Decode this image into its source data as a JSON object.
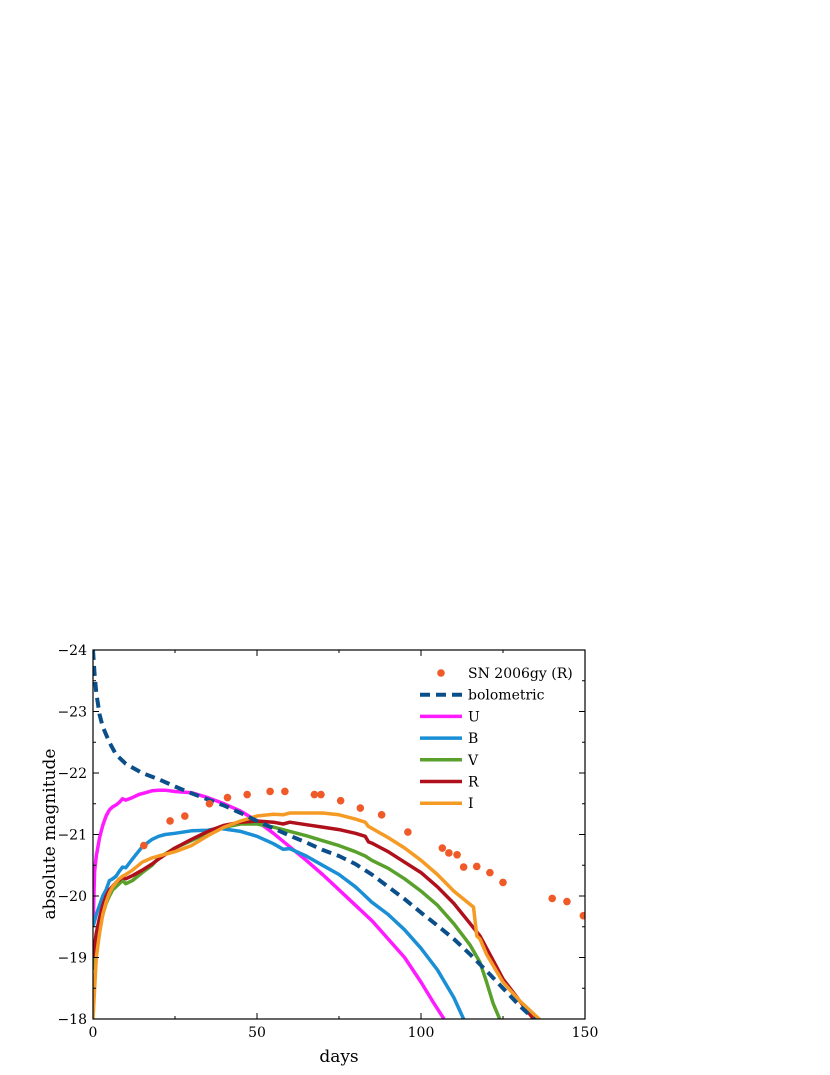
{
  "chart_data": {
    "type": "line",
    "xlabel": "days",
    "ylabel": "absolute magnitude",
    "xlim": [
      0,
      150
    ],
    "ylim": [
      -18,
      -24
    ],
    "y_inverted": true,
    "x_ticks": [
      0,
      50,
      100,
      150
    ],
    "y_ticks": [
      -24,
      -23,
      -22,
      -21,
      -20,
      -19,
      -18
    ],
    "grid": false,
    "legend_position": "top-right",
    "series": [
      {
        "name": "SN 2006gy (R)",
        "style": "markers",
        "color": "#f05a28",
        "x": [
          15.5,
          23.5,
          28,
          35.5,
          41,
          47,
          54,
          58.5,
          67.5,
          69.5,
          75.5,
          81.5,
          88,
          96,
          106.5,
          108.5,
          111,
          113,
          117,
          121,
          125,
          140,
          144.5,
          149.5
        ],
        "y": [
          -20.82,
          -21.22,
          -21.3,
          -21.5,
          -21.6,
          -21.65,
          -21.7,
          -21.7,
          -21.65,
          -21.65,
          -21.55,
          -21.43,
          -21.32,
          -21.04,
          -20.78,
          -20.7,
          -20.67,
          -20.47,
          -20.48,
          -20.38,
          -20.22,
          -19.96,
          -19.91,
          -19.68
        ]
      },
      {
        "name": "bolometric",
        "style": "dashed",
        "color": "#0b4f8a",
        "x": [
          0,
          0.5,
          1,
          2,
          3,
          5,
          7,
          10,
          15,
          20,
          25,
          30,
          35,
          40,
          45,
          50,
          55,
          60,
          65,
          70,
          75,
          80,
          85,
          90,
          95,
          100,
          105,
          110,
          115,
          120,
          125,
          130,
          135,
          137.5
        ],
        "y": [
          -24,
          -23.6,
          -23.3,
          -22.95,
          -22.75,
          -22.5,
          -22.3,
          -22.15,
          -22.0,
          -21.9,
          -21.78,
          -21.67,
          -21.57,
          -21.47,
          -21.35,
          -21.22,
          -21.1,
          -20.98,
          -20.87,
          -20.75,
          -20.65,
          -20.52,
          -20.35,
          -20.15,
          -19.95,
          -19.73,
          -19.52,
          -19.3,
          -19.05,
          -18.78,
          -18.5,
          -18.22,
          -17.97,
          -17.85
        ]
      },
      {
        "name": "U",
        "style": "solid",
        "color": "#ff1aff",
        "x": [
          0,
          0.5,
          1,
          2,
          3,
          4,
          5,
          6,
          7,
          8,
          9,
          10,
          12,
          14,
          16,
          18,
          20,
          22,
          25,
          30,
          35,
          40,
          45,
          50,
          55,
          60,
          65,
          70,
          75,
          80,
          85,
          90,
          95,
          100,
          104,
          107
        ],
        "y": [
          -19.5,
          -20.4,
          -20.65,
          -20.95,
          -21.15,
          -21.3,
          -21.4,
          -21.45,
          -21.48,
          -21.52,
          -21.58,
          -21.56,
          -21.6,
          -21.65,
          -21.68,
          -21.71,
          -21.72,
          -21.72,
          -21.7,
          -21.68,
          -21.6,
          -21.5,
          -21.38,
          -21.22,
          -21.02,
          -20.8,
          -20.58,
          -20.35,
          -20.1,
          -19.85,
          -19.6,
          -19.3,
          -19.0,
          -18.6,
          -18.25,
          -18.0
        ]
      },
      {
        "name": "B",
        "style": "solid",
        "color": "#1a8fd6",
        "x": [
          0,
          1,
          2,
          3,
          4,
          5,
          6,
          7,
          8,
          9,
          10,
          12,
          15,
          18,
          20,
          22,
          25,
          30,
          35,
          38,
          40,
          45,
          50,
          55,
          58,
          60,
          65,
          70,
          75,
          80,
          82,
          85,
          90,
          95,
          100,
          105,
          110,
          113
        ],
        "y": [
          -19.5,
          -19.7,
          -19.85,
          -20.0,
          -20.1,
          -20.25,
          -20.28,
          -20.32,
          -20.4,
          -20.47,
          -20.46,
          -20.6,
          -20.8,
          -20.92,
          -20.97,
          -21.0,
          -21.02,
          -21.06,
          -21.07,
          -21.1,
          -21.09,
          -21.05,
          -20.97,
          -20.85,
          -20.76,
          -20.77,
          -20.65,
          -20.5,
          -20.35,
          -20.15,
          -20.05,
          -19.9,
          -19.7,
          -19.45,
          -19.15,
          -18.8,
          -18.35,
          -18.0
        ]
      },
      {
        "name": "V",
        "style": "solid",
        "color": "#5aa02c",
        "x": [
          0,
          1,
          2,
          3,
          4,
          5,
          6,
          7,
          8,
          9,
          10,
          12,
          15,
          18,
          20,
          25,
          30,
          35,
          40,
          45,
          50,
          55,
          60,
          65,
          70,
          75,
          80,
          83,
          85,
          90,
          95,
          100,
          105,
          110,
          115,
          118,
          120,
          122,
          124
        ],
        "y": [
          -18.8,
          -19.3,
          -19.5,
          -19.7,
          -19.88,
          -20.0,
          -20.1,
          -20.15,
          -20.2,
          -20.25,
          -20.2,
          -20.25,
          -20.38,
          -20.5,
          -20.62,
          -20.78,
          -20.9,
          -21.02,
          -21.12,
          -21.17,
          -21.17,
          -21.12,
          -21.05,
          -20.98,
          -20.9,
          -20.82,
          -20.72,
          -20.65,
          -20.58,
          -20.45,
          -20.28,
          -20.08,
          -19.85,
          -19.55,
          -19.2,
          -18.92,
          -18.6,
          -18.25,
          -18.0
        ]
      },
      {
        "name": "R",
        "style": "solid",
        "color": "#b0101c",
        "x": [
          0,
          1,
          2,
          3,
          4,
          5,
          6,
          7,
          8,
          9,
          10,
          12,
          15,
          18,
          20,
          25,
          30,
          35,
          40,
          45,
          50,
          55,
          58,
          60,
          65,
          70,
          75,
          80,
          83,
          84,
          85,
          90,
          95,
          100,
          105,
          110,
          115,
          118,
          120,
          122,
          125,
          130,
          135
        ],
        "y": [
          -19.0,
          -19.4,
          -19.65,
          -19.85,
          -20.0,
          -20.1,
          -20.16,
          -20.22,
          -20.26,
          -20.3,
          -20.28,
          -20.33,
          -20.42,
          -20.52,
          -20.6,
          -20.78,
          -20.92,
          -21.05,
          -21.15,
          -21.2,
          -21.22,
          -21.2,
          -21.17,
          -21.2,
          -21.16,
          -21.12,
          -21.08,
          -21.02,
          -20.97,
          -20.88,
          -20.86,
          -20.72,
          -20.55,
          -20.38,
          -20.15,
          -19.88,
          -19.55,
          -19.35,
          -19.15,
          -18.95,
          -18.65,
          -18.3,
          -17.95
        ]
      },
      {
        "name": "I",
        "style": "solid",
        "color": "#f59b25",
        "x": [
          0,
          1,
          2,
          3,
          4,
          5,
          6,
          7,
          8,
          9,
          10,
          12,
          15,
          18,
          20,
          25,
          30,
          35,
          40,
          45,
          50,
          55,
          58,
          60,
          65,
          70,
          75,
          80,
          83,
          84,
          85,
          90,
          95,
          100,
          105,
          110,
          113,
          116,
          117,
          118,
          120,
          125,
          130,
          135,
          137
        ],
        "y": [
          -18.0,
          -19.0,
          -19.4,
          -19.7,
          -19.9,
          -20.05,
          -20.15,
          -20.22,
          -20.28,
          -20.32,
          -20.35,
          -20.42,
          -20.55,
          -20.62,
          -20.65,
          -20.72,
          -20.82,
          -20.98,
          -21.12,
          -21.22,
          -21.3,
          -21.33,
          -21.32,
          -21.35,
          -21.35,
          -21.35,
          -21.32,
          -21.25,
          -21.2,
          -21.13,
          -21.1,
          -20.95,
          -20.78,
          -20.58,
          -20.35,
          -20.08,
          -19.95,
          -19.82,
          -19.35,
          -19.3,
          -19.05,
          -18.6,
          -18.3,
          -18.05,
          -17.95
        ]
      }
    ]
  }
}
